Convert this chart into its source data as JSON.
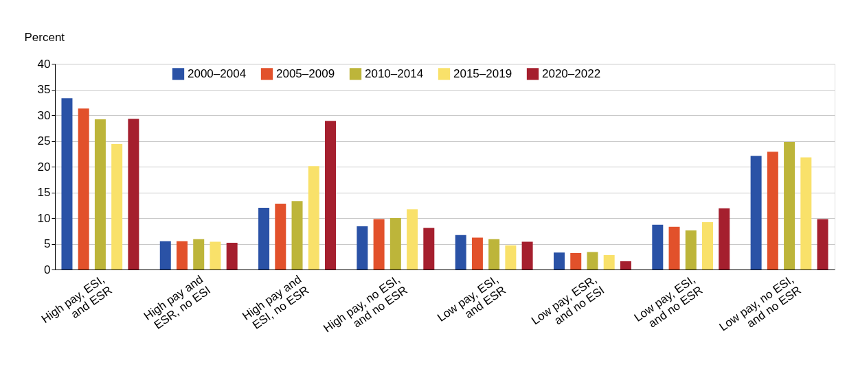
{
  "chart_data": {
    "type": "bar",
    "ylabel": "Percent",
    "categories": [
      "High pay, ESI,\nand ESR",
      "High pay and\nESR, no ESI",
      "High pay and\nESI, no ESR",
      "High pay, no ESI,\nand no ESR",
      "Low pay, ESI,\nand ESR",
      "Low pay, ESR,\nand no ESI",
      "Low pay, ESI,\nand no ESR",
      "Low pay, no ESI,\nand no ESR"
    ],
    "series": [
      {
        "name": "2000–2004",
        "color": "#2a52a6",
        "values": [
          33.3,
          5.5,
          12.0,
          8.4,
          6.7,
          3.3,
          8.7,
          22.1
        ]
      },
      {
        "name": "2005–2009",
        "color": "#e2512b",
        "values": [
          31.3,
          5.5,
          12.8,
          9.8,
          6.2,
          3.2,
          8.3,
          22.9
        ]
      },
      {
        "name": "2010–2014",
        "color": "#bdb53a",
        "values": [
          29.2,
          5.9,
          13.3,
          10.0,
          5.9,
          3.4,
          7.6,
          24.8
        ]
      },
      {
        "name": "2015–2019",
        "color": "#f9e16a",
        "values": [
          24.4,
          5.4,
          20.1,
          11.7,
          4.7,
          2.8,
          9.2,
          21.8
        ]
      },
      {
        "name": "2020–2022",
        "color": "#a51f2e",
        "values": [
          29.3,
          5.2,
          28.9,
          8.1,
          5.4,
          1.6,
          11.9,
          9.8
        ]
      }
    ],
    "ylim": [
      0,
      40
    ],
    "yticks": [
      0,
      5,
      10,
      15,
      20,
      25,
      30,
      35,
      40
    ],
    "grid": "y",
    "legend": "top"
  }
}
